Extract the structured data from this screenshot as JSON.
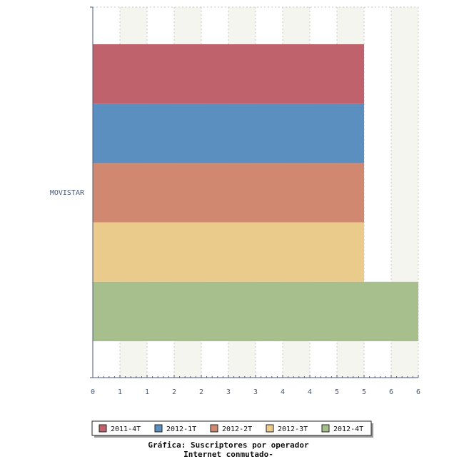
{
  "chart_data": {
    "type": "bar",
    "orientation": "horizontal",
    "categories": [
      "MOVISTAR"
    ],
    "series": [
      {
        "name": "2011-4T",
        "values": [
          5
        ],
        "color": "#c0626b"
      },
      {
        "name": "2012-1T",
        "values": [
          5
        ],
        "color": "#5b8fc0"
      },
      {
        "name": "2012-2T",
        "values": [
          5
        ],
        "color": "#d08870"
      },
      {
        "name": "2012-3T",
        "values": [
          5
        ],
        "color": "#eacb8c"
      },
      {
        "name": "2012-4T",
        "values": [
          6
        ],
        "color": "#a6bf8c"
      }
    ],
    "xlim": [
      0,
      6
    ],
    "x_tick_labels": [
      "0",
      "1",
      "1",
      "2",
      "2",
      "3",
      "3",
      "4",
      "4",
      "5",
      "5",
      "6",
      "6"
    ],
    "title_lines": [
      "Gráfica: Suscriptores por operador",
      "Internet conmutado-"
    ],
    "legend_position": "bottom",
    "grid": "vertical-dashed",
    "background_bands": [
      "#ffffff",
      "#f5f5f0"
    ]
  }
}
